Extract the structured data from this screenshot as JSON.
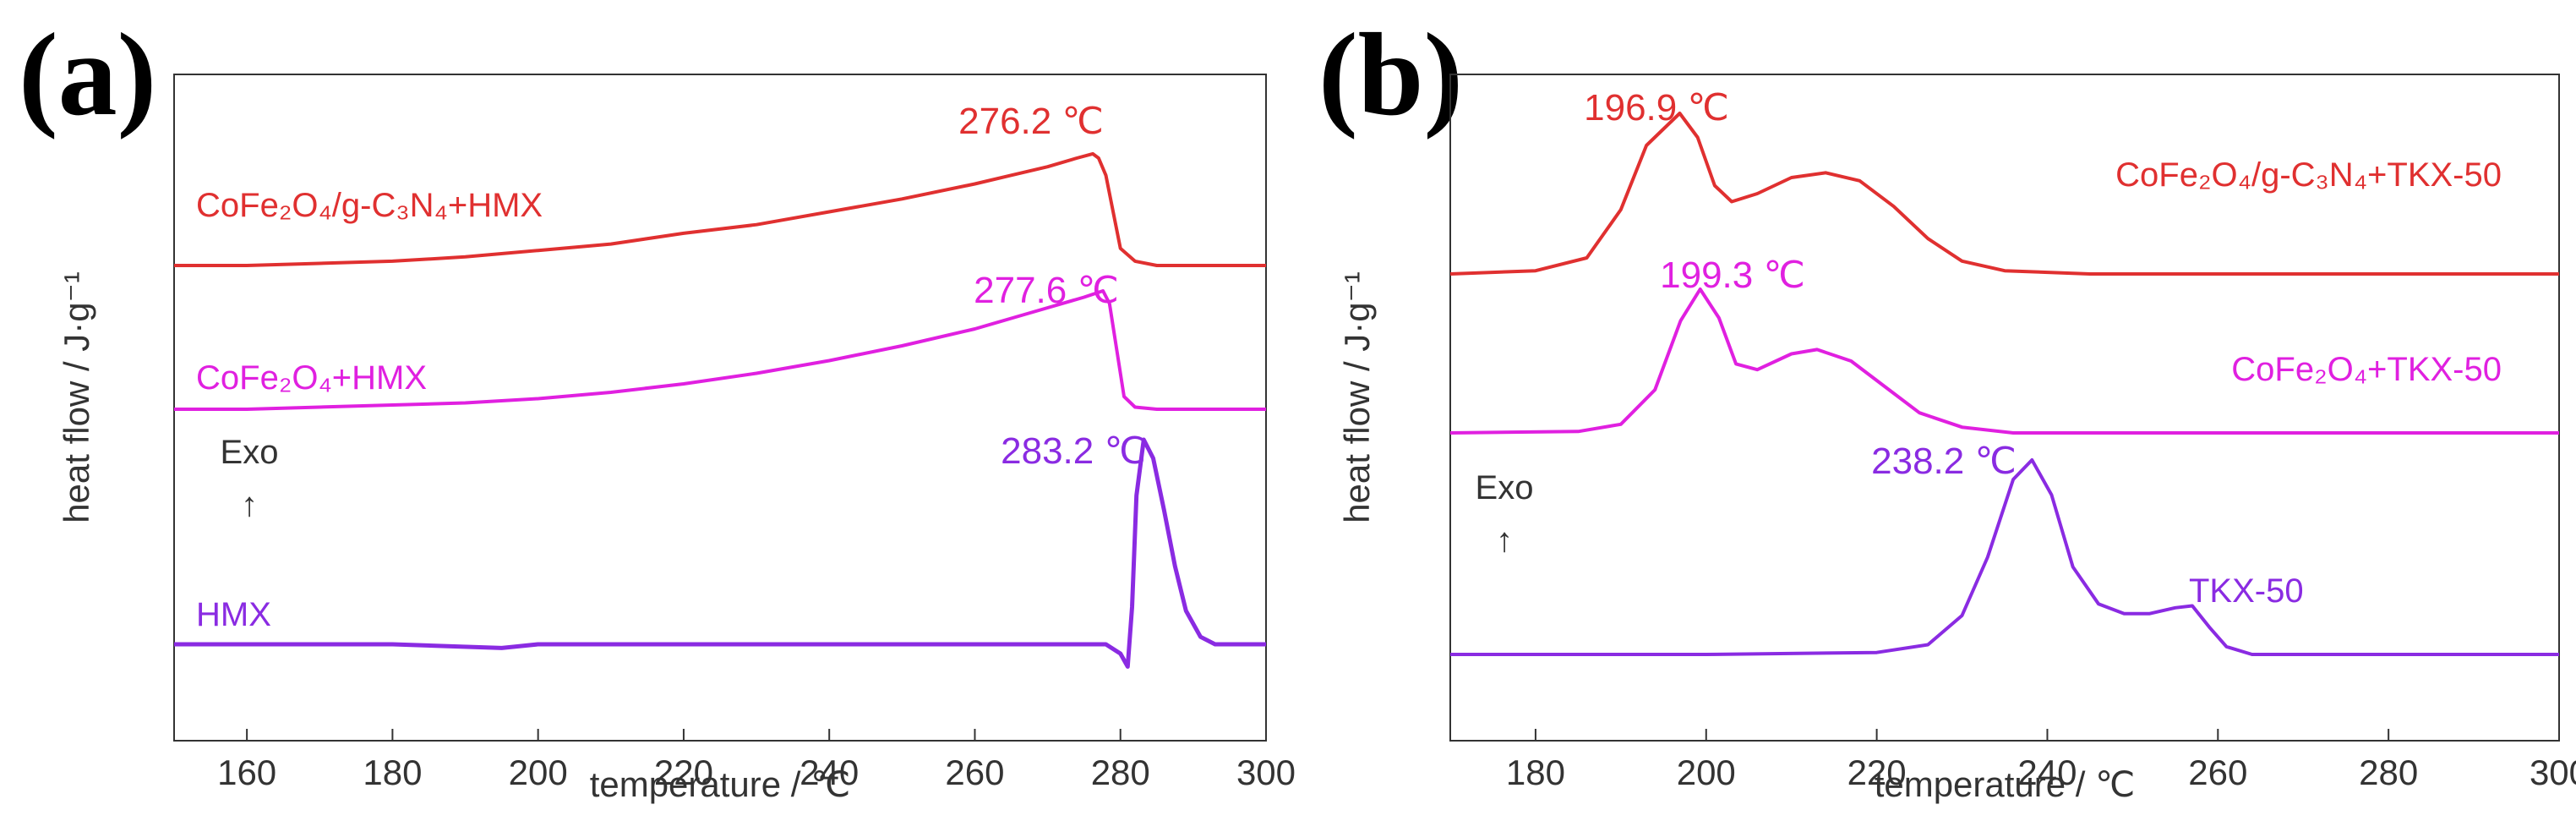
{
  "chart_data": [
    {
      "type": "line",
      "panel_label": "(a)",
      "xlabel": "temperature / ℃",
      "ylabel": "heat flow / J·g⁻¹",
      "xlim": [
        150,
        300
      ],
      "xticks": [
        160,
        180,
        200,
        220,
        240,
        260,
        280,
        300
      ],
      "exo_label": "Exo",
      "exo_arrow": "↑",
      "series": [
        {
          "name": "CoFe₂O₄/g-C₃N₄+HMX",
          "color": "#e03030",
          "peak_label": "276.2 ℃",
          "points": [
            [
              150,
              0.0
            ],
            [
              160,
              0.0
            ],
            [
              170,
              0.01
            ],
            [
              180,
              0.02
            ],
            [
              190,
              0.04
            ],
            [
              200,
              0.07
            ],
            [
              210,
              0.1
            ],
            [
              220,
              0.15
            ],
            [
              230,
              0.19
            ],
            [
              240,
              0.25
            ],
            [
              250,
              0.31
            ],
            [
              260,
              0.38
            ],
            [
              265,
              0.42
            ],
            [
              270,
              0.46
            ],
            [
              274,
              0.5
            ],
            [
              276.2,
              0.52
            ],
            [
              277,
              0.5
            ],
            [
              278,
              0.42
            ],
            [
              279,
              0.25
            ],
            [
              280,
              0.08
            ],
            [
              282,
              0.02
            ],
            [
              285,
              0.0
            ],
            [
              300,
              0.0
            ]
          ]
        },
        {
          "name": "CoFe₂O₄+HMX",
          "color": "#e020e0",
          "peak_label": "277.6 ℃",
          "points": [
            [
              150,
              0.0
            ],
            [
              160,
              0.0
            ],
            [
              170,
              0.01
            ],
            [
              180,
              0.02
            ],
            [
              190,
              0.03
            ],
            [
              200,
              0.05
            ],
            [
              210,
              0.08
            ],
            [
              220,
              0.12
            ],
            [
              230,
              0.17
            ],
            [
              240,
              0.23
            ],
            [
              250,
              0.3
            ],
            [
              260,
              0.38
            ],
            [
              265,
              0.43
            ],
            [
              270,
              0.48
            ],
            [
              275,
              0.53
            ],
            [
              277.6,
              0.56
            ],
            [
              278.5,
              0.5
            ],
            [
              279.5,
              0.28
            ],
            [
              280.5,
              0.06
            ],
            [
              282,
              0.01
            ],
            [
              285,
              0.0
            ],
            [
              300,
              0.0
            ]
          ]
        },
        {
          "name": "HMX",
          "color": "#8a2be2",
          "peak_label": "283.2 ℃",
          "points": [
            [
              150,
              0.0
            ],
            [
              180,
              0.0
            ],
            [
              195,
              -0.02
            ],
            [
              200,
              0.0
            ],
            [
              210,
              0.0
            ],
            [
              240,
              0.0
            ],
            [
              270,
              0.0
            ],
            [
              278,
              0.0
            ],
            [
              280,
              -0.05
            ],
            [
              281,
              -0.12
            ],
            [
              281.6,
              0.2
            ],
            [
              282.2,
              0.8
            ],
            [
              283.2,
              1.1
            ],
            [
              284.5,
              1.0
            ],
            [
              286,
              0.72
            ],
            [
              287.5,
              0.42
            ],
            [
              289,
              0.18
            ],
            [
              291,
              0.04
            ],
            [
              293,
              0.0
            ],
            [
              300,
              0.0
            ]
          ]
        }
      ]
    },
    {
      "type": "line",
      "panel_label": "(b)",
      "xlabel": "temperature / ℃",
      "ylabel": "heat flow / J·g⁻¹",
      "xlim": [
        170,
        300
      ],
      "xticks": [
        180,
        200,
        220,
        240,
        260,
        280,
        300
      ],
      "exo_label": "Exo",
      "exo_arrow": "↑",
      "series": [
        {
          "name": "CoFe₂O₄/g-C₃N₄+TKX-50",
          "color": "#e03030",
          "peak_label": "196.9 ℃",
          "points": [
            [
              170,
              0.0
            ],
            [
              180,
              0.02
            ],
            [
              186,
              0.1
            ],
            [
              190,
              0.4
            ],
            [
              193,
              0.8
            ],
            [
              196.9,
              1.0
            ],
            [
              199,
              0.85
            ],
            [
              201,
              0.55
            ],
            [
              203,
              0.45
            ],
            [
              206,
              0.5
            ],
            [
              210,
              0.6
            ],
            [
              214,
              0.63
            ],
            [
              218,
              0.58
            ],
            [
              222,
              0.42
            ],
            [
              226,
              0.22
            ],
            [
              230,
              0.08
            ],
            [
              235,
              0.02
            ],
            [
              245,
              0.0
            ],
            [
              300,
              0.0
            ]
          ]
        },
        {
          "name": "CoFe₂O₄+TKX-50",
          "color": "#e020e0",
          "peak_label": "199.3 ℃",
          "points": [
            [
              170,
              0.0
            ],
            [
              185,
              0.01
            ],
            [
              190,
              0.06
            ],
            [
              194,
              0.3
            ],
            [
              197,
              0.78
            ],
            [
              199.3,
              1.0
            ],
            [
              201.5,
              0.8
            ],
            [
              203.5,
              0.48
            ],
            [
              206,
              0.44
            ],
            [
              210,
              0.55
            ],
            [
              213,
              0.58
            ],
            [
              217,
              0.5
            ],
            [
              221,
              0.32
            ],
            [
              225,
              0.14
            ],
            [
              230,
              0.04
            ],
            [
              236,
              0.0
            ],
            [
              300,
              0.0
            ]
          ]
        },
        {
          "name": "TKX-50",
          "color": "#8a2be2",
          "peak_label": "238.2 ℃",
          "points": [
            [
              170,
              0.0
            ],
            [
              200,
              0.0
            ],
            [
              220,
              0.01
            ],
            [
              226,
              0.05
            ],
            [
              230,
              0.2
            ],
            [
              233,
              0.5
            ],
            [
              236,
              0.9
            ],
            [
              238.2,
              1.0
            ],
            [
              240.5,
              0.82
            ],
            [
              243,
              0.45
            ],
            [
              246,
              0.26
            ],
            [
              249,
              0.21
            ],
            [
              252,
              0.21
            ],
            [
              255,
              0.24
            ],
            [
              257,
              0.25
            ],
            [
              259,
              0.14
            ],
            [
              261,
              0.04
            ],
            [
              264,
              0.0
            ],
            [
              300,
              0.0
            ]
          ]
        }
      ]
    }
  ]
}
